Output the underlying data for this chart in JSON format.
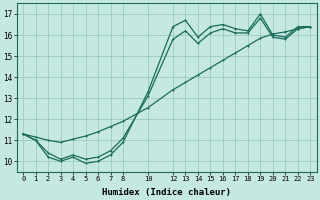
{
  "xlabel": "Humidex (Indice chaleur)",
  "background_color": "#c5e8e0",
  "grid_color": "#9ecfc5",
  "line_color": "#1a6b5a",
  "xlim": [
    -0.5,
    23.5
  ],
  "ylim": [
    9.5,
    17.5
  ],
  "xticks": [
    0,
    1,
    2,
    3,
    4,
    5,
    6,
    7,
    8,
    10,
    12,
    13,
    14,
    15,
    16,
    17,
    18,
    19,
    20,
    21,
    22,
    23
  ],
  "yticks": [
    10,
    11,
    12,
    13,
    14,
    15,
    16,
    17
  ],
  "line1_x": [
    0,
    1,
    2,
    3,
    4,
    5,
    6,
    7,
    8,
    10,
    12,
    13,
    14,
    15,
    16,
    17,
    18,
    19,
    20,
    21,
    22,
    23
  ],
  "line1_y": [
    11.3,
    11.0,
    10.2,
    10.0,
    10.2,
    9.9,
    10.0,
    10.3,
    10.9,
    13.3,
    16.4,
    16.7,
    15.9,
    16.4,
    16.5,
    16.3,
    16.2,
    17.0,
    16.0,
    15.9,
    16.4,
    16.4
  ],
  "line2_x": [
    0,
    1,
    2,
    3,
    4,
    5,
    6,
    7,
    8,
    10,
    12,
    13,
    14,
    15,
    16,
    17,
    18,
    19,
    20,
    21,
    22,
    23
  ],
  "line2_y": [
    11.3,
    11.0,
    10.4,
    10.1,
    10.3,
    10.1,
    10.2,
    10.5,
    11.1,
    13.1,
    15.8,
    16.2,
    15.6,
    16.1,
    16.3,
    16.1,
    16.1,
    16.8,
    15.9,
    15.8,
    16.3,
    16.4
  ],
  "line3_x": [
    0,
    1,
    2,
    3,
    4,
    5,
    6,
    7,
    8,
    10,
    12,
    13,
    14,
    15,
    16,
    17,
    18,
    19,
    20,
    21,
    22,
    23
  ],
  "line3_y": [
    11.3,
    11.15,
    11.0,
    10.9,
    11.05,
    11.2,
    11.4,
    11.65,
    11.9,
    12.55,
    13.4,
    13.75,
    14.1,
    14.45,
    14.8,
    15.15,
    15.5,
    15.85,
    16.05,
    16.15,
    16.3,
    16.4
  ]
}
